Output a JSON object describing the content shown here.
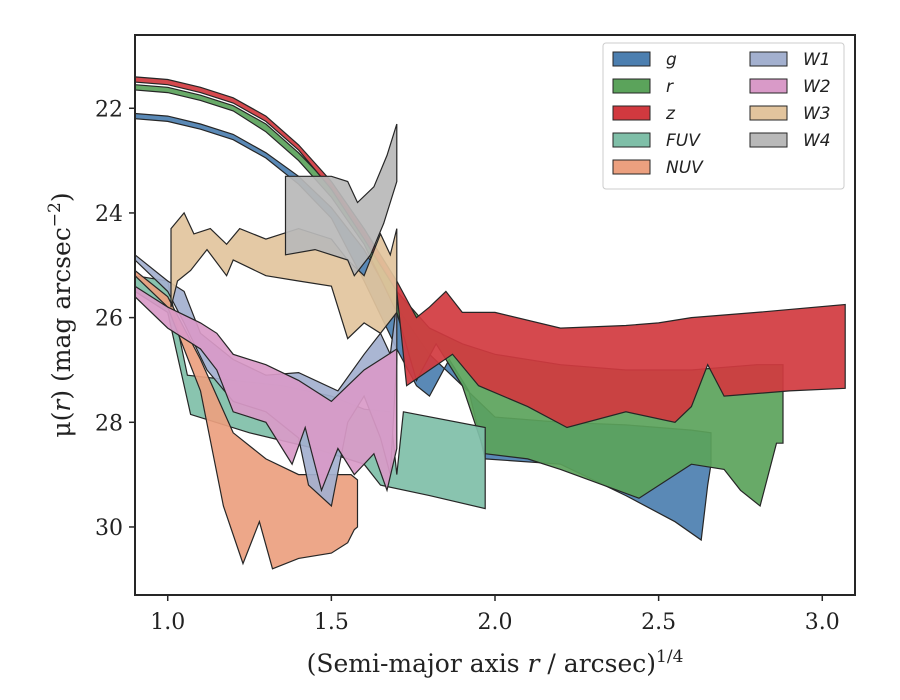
{
  "chart_data": {
    "type": "area",
    "xlabel": {
      "prefix": "(Semi-major axis ",
      "var": "r",
      "mid": " / arcsec)",
      "sup": "1/4"
    },
    "ylabel": {
      "prefix": "μ(",
      "var": "r",
      "mid": ") (mag arcsec",
      "sup": "−2",
      "suffix": ")"
    },
    "xlim": [
      0.9,
      3.1
    ],
    "ylim": [
      31.3,
      20.6
    ],
    "y_inverted": true,
    "xticks": [
      1.0,
      1.5,
      2.0,
      2.5,
      3.0
    ],
    "xtick_labels": [
      "1.0",
      "1.5",
      "2.0",
      "2.5",
      "3.0"
    ],
    "yticks": [
      22,
      24,
      26,
      28,
      30
    ],
    "ytick_labels": [
      "22",
      "24",
      "26",
      "28",
      "30"
    ],
    "grid": false,
    "legend_position": "top-right",
    "series": [
      {
        "name": "g",
        "color": "#4c7fb0",
        "upper": [
          [
            0.9,
            22.1
          ],
          [
            1.0,
            22.15
          ],
          [
            1.1,
            22.3
          ],
          [
            1.2,
            22.5
          ],
          [
            1.3,
            22.85
          ],
          [
            1.4,
            23.3
          ],
          [
            1.5,
            23.9
          ],
          [
            1.6,
            24.7
          ],
          [
            1.7,
            25.8
          ],
          [
            1.8,
            26.7
          ],
          [
            1.9,
            27.3
          ],
          [
            2.0,
            27.9
          ],
          [
            2.2,
            28.0
          ],
          [
            2.4,
            28.05
          ],
          [
            2.6,
            28.15
          ],
          [
            2.66,
            28.2
          ]
        ],
        "lower": [
          [
            0.9,
            22.2
          ],
          [
            1.0,
            22.25
          ],
          [
            1.1,
            22.4
          ],
          [
            1.2,
            22.6
          ],
          [
            1.3,
            22.95
          ],
          [
            1.4,
            23.45
          ],
          [
            1.5,
            24.1
          ],
          [
            1.6,
            25.3
          ],
          [
            1.7,
            26.6
          ],
          [
            1.76,
            27.3
          ],
          [
            1.8,
            27.5
          ],
          [
            1.86,
            26.8
          ],
          [
            1.92,
            27.4
          ],
          [
            1.97,
            28.7
          ],
          [
            2.2,
            28.8
          ],
          [
            2.4,
            29.4
          ],
          [
            2.55,
            29.9
          ],
          [
            2.63,
            30.25
          ],
          [
            2.65,
            29.2
          ],
          [
            2.66,
            28.8
          ]
        ]
      },
      {
        "name": "r",
        "color": "#5ba35b",
        "upper": [
          [
            0.9,
            21.55
          ],
          [
            1.0,
            21.6
          ],
          [
            1.1,
            21.75
          ],
          [
            1.2,
            21.95
          ],
          [
            1.3,
            22.3
          ],
          [
            1.4,
            22.85
          ],
          [
            1.5,
            23.5
          ],
          [
            1.6,
            24.4
          ],
          [
            1.7,
            25.5
          ],
          [
            1.8,
            26.2
          ],
          [
            1.9,
            26.5
          ],
          [
            2.0,
            26.7
          ],
          [
            2.2,
            26.9
          ],
          [
            2.4,
            27.0
          ],
          [
            2.6,
            27.0
          ],
          [
            2.8,
            26.9
          ],
          [
            2.88,
            26.9
          ]
        ],
        "lower": [
          [
            0.9,
            21.65
          ],
          [
            1.0,
            21.7
          ],
          [
            1.1,
            21.85
          ],
          [
            1.2,
            22.05
          ],
          [
            1.3,
            22.45
          ],
          [
            1.4,
            23.0
          ],
          [
            1.5,
            23.7
          ],
          [
            1.6,
            24.6
          ],
          [
            1.7,
            25.9
          ],
          [
            1.76,
            27.2
          ],
          [
            1.82,
            26.5
          ],
          [
            1.9,
            27.3
          ],
          [
            1.97,
            28.6
          ],
          [
            2.1,
            28.7
          ],
          [
            2.2,
            28.9
          ],
          [
            2.44,
            29.45
          ],
          [
            2.6,
            28.8
          ],
          [
            2.7,
            28.9
          ],
          [
            2.75,
            29.3
          ],
          [
            2.81,
            29.6
          ],
          [
            2.86,
            28.4
          ],
          [
            2.88,
            28.4
          ]
        ]
      },
      {
        "name": "z",
        "color": "#d1393f",
        "upper": [
          [
            0.9,
            21.4
          ],
          [
            1.0,
            21.45
          ],
          [
            1.1,
            21.6
          ],
          [
            1.2,
            21.8
          ],
          [
            1.3,
            22.15
          ],
          [
            1.4,
            22.7
          ],
          [
            1.5,
            23.4
          ],
          [
            1.6,
            24.3
          ],
          [
            1.7,
            25.3
          ],
          [
            1.76,
            26.0
          ],
          [
            1.8,
            25.8
          ],
          [
            1.85,
            25.5
          ],
          [
            1.9,
            25.9
          ],
          [
            2.0,
            25.9
          ],
          [
            2.2,
            26.2
          ],
          [
            2.4,
            26.15
          ],
          [
            2.5,
            26.1
          ],
          [
            2.6,
            26.0
          ],
          [
            2.8,
            25.9
          ],
          [
            3.07,
            25.75
          ]
        ],
        "lower": [
          [
            0.9,
            21.5
          ],
          [
            1.0,
            21.55
          ],
          [
            1.1,
            21.7
          ],
          [
            1.2,
            21.9
          ],
          [
            1.3,
            22.25
          ],
          [
            1.4,
            22.8
          ],
          [
            1.5,
            23.55
          ],
          [
            1.6,
            24.5
          ],
          [
            1.7,
            25.5
          ],
          [
            1.73,
            27.3
          ],
          [
            1.8,
            27.0
          ],
          [
            1.87,
            26.7
          ],
          [
            1.95,
            27.3
          ],
          [
            2.1,
            27.7
          ],
          [
            2.22,
            28.1
          ],
          [
            2.4,
            27.8
          ],
          [
            2.55,
            28.0
          ],
          [
            2.6,
            27.7
          ],
          [
            2.65,
            26.9
          ],
          [
            2.7,
            27.5
          ],
          [
            2.9,
            27.4
          ],
          [
            3.07,
            27.35
          ]
        ]
      },
      {
        "name": "FUV",
        "color": "#7fbfa8",
        "upper": [
          [
            0.9,
            25.2
          ],
          [
            1.0,
            25.3
          ],
          [
            1.06,
            27.1
          ],
          [
            1.2,
            27.2
          ],
          [
            1.35,
            27.3
          ],
          [
            1.5,
            27.5
          ],
          [
            1.6,
            27.75
          ],
          [
            1.68,
            27.8
          ],
          [
            1.7,
            29.0
          ],
          [
            1.72,
            27.8
          ],
          [
            1.97,
            28.1
          ]
        ],
        "lower": [
          [
            0.9,
            25.5
          ],
          [
            1.0,
            25.9
          ],
          [
            1.07,
            27.85
          ],
          [
            1.25,
            28.2
          ],
          [
            1.45,
            28.5
          ],
          [
            1.6,
            28.8
          ],
          [
            1.65,
            29.2
          ],
          [
            1.8,
            29.4
          ],
          [
            1.97,
            29.65
          ]
        ]
      },
      {
        "name": "NUV",
        "color": "#eca07f",
        "upper": [
          [
            0.9,
            25.1
          ],
          [
            1.0,
            25.6
          ],
          [
            1.1,
            26.8
          ],
          [
            1.2,
            28.2
          ],
          [
            1.3,
            28.7
          ],
          [
            1.4,
            29.0
          ],
          [
            1.5,
            29.0
          ],
          [
            1.56,
            29.0
          ],
          [
            1.58,
            29.1
          ]
        ],
        "lower": [
          [
            0.9,
            25.2
          ],
          [
            1.0,
            25.8
          ],
          [
            1.1,
            27.4
          ],
          [
            1.17,
            29.6
          ],
          [
            1.23,
            30.7
          ],
          [
            1.28,
            29.9
          ],
          [
            1.32,
            30.8
          ],
          [
            1.4,
            30.6
          ],
          [
            1.5,
            30.5
          ],
          [
            1.55,
            30.3
          ],
          [
            1.57,
            30.05
          ],
          [
            1.58,
            30.0
          ]
        ]
      },
      {
        "name": "W1",
        "color": "#a3b0cf",
        "upper": [
          [
            0.9,
            24.8
          ],
          [
            1.0,
            25.3
          ],
          [
            1.05,
            25.5
          ],
          [
            1.1,
            26.3
          ],
          [
            1.2,
            26.8
          ],
          [
            1.3,
            27.1
          ],
          [
            1.4,
            27.05
          ],
          [
            1.52,
            27.4
          ],
          [
            1.6,
            26.7
          ],
          [
            1.65,
            26.3
          ],
          [
            1.68,
            26.7
          ],
          [
            1.7,
            25.7
          ]
        ],
        "lower": [
          [
            0.9,
            24.9
          ],
          [
            1.0,
            25.5
          ],
          [
            1.05,
            26.1
          ],
          [
            1.12,
            27.0
          ],
          [
            1.2,
            27.6
          ],
          [
            1.3,
            27.8
          ],
          [
            1.4,
            28.3
          ],
          [
            1.43,
            29.2
          ],
          [
            1.5,
            29.6
          ],
          [
            1.55,
            28.0
          ],
          [
            1.6,
            27.5
          ],
          [
            1.65,
            28.3
          ],
          [
            1.68,
            29.0
          ],
          [
            1.7,
            26.8
          ]
        ]
      },
      {
        "name": "W2",
        "color": "#d99ac8",
        "upper": [
          [
            0.9,
            25.4
          ],
          [
            1.0,
            25.8
          ],
          [
            1.1,
            26.1
          ],
          [
            1.15,
            26.3
          ],
          [
            1.2,
            26.7
          ],
          [
            1.3,
            26.9
          ],
          [
            1.4,
            27.2
          ],
          [
            1.5,
            27.6
          ],
          [
            1.55,
            27.3
          ],
          [
            1.6,
            27.0
          ],
          [
            1.65,
            26.8
          ],
          [
            1.7,
            26.6
          ]
        ],
        "lower": [
          [
            0.9,
            25.6
          ],
          [
            1.0,
            26.2
          ],
          [
            1.1,
            26.6
          ],
          [
            1.15,
            27.0
          ],
          [
            1.2,
            27.8
          ],
          [
            1.3,
            28.0
          ],
          [
            1.38,
            28.8
          ],
          [
            1.42,
            28.1
          ],
          [
            1.47,
            29.3
          ],
          [
            1.52,
            28.5
          ],
          [
            1.57,
            29.0
          ],
          [
            1.63,
            28.6
          ],
          [
            1.67,
            29.3
          ],
          [
            1.7,
            28.5
          ]
        ]
      },
      {
        "name": "W3",
        "color": "#e2c49d",
        "upper": [
          [
            1.01,
            24.3
          ],
          [
            1.05,
            24.0
          ],
          [
            1.08,
            24.4
          ],
          [
            1.13,
            24.3
          ],
          [
            1.18,
            24.6
          ],
          [
            1.22,
            24.3
          ],
          [
            1.3,
            24.5
          ],
          [
            1.4,
            24.3
          ],
          [
            1.5,
            24.5
          ],
          [
            1.55,
            24.9
          ],
          [
            1.6,
            25.2
          ],
          [
            1.65,
            24.4
          ],
          [
            1.68,
            24.8
          ],
          [
            1.7,
            24.3
          ]
        ],
        "lower": [
          [
            1.01,
            25.8
          ],
          [
            1.03,
            25.3
          ],
          [
            1.07,
            25.1
          ],
          [
            1.12,
            24.7
          ],
          [
            1.18,
            25.2
          ],
          [
            1.2,
            24.9
          ],
          [
            1.3,
            25.2
          ],
          [
            1.4,
            25.3
          ],
          [
            1.5,
            25.4
          ],
          [
            1.55,
            26.4
          ],
          [
            1.6,
            26.1
          ],
          [
            1.65,
            26.3
          ],
          [
            1.7,
            25.9
          ]
        ]
      },
      {
        "name": "W4",
        "color": "#b9b9b9",
        "upper": [
          [
            1.36,
            23.3
          ],
          [
            1.5,
            23.3
          ],
          [
            1.55,
            23.4
          ],
          [
            1.58,
            23.8
          ],
          [
            1.63,
            23.5
          ],
          [
            1.67,
            22.9
          ],
          [
            1.7,
            22.3
          ]
        ],
        "lower": [
          [
            1.36,
            24.8
          ],
          [
            1.45,
            24.7
          ],
          [
            1.55,
            24.9
          ],
          [
            1.57,
            25.2
          ],
          [
            1.62,
            24.8
          ],
          [
            1.66,
            24.2
          ],
          [
            1.7,
            23.4
          ]
        ]
      }
    ]
  }
}
